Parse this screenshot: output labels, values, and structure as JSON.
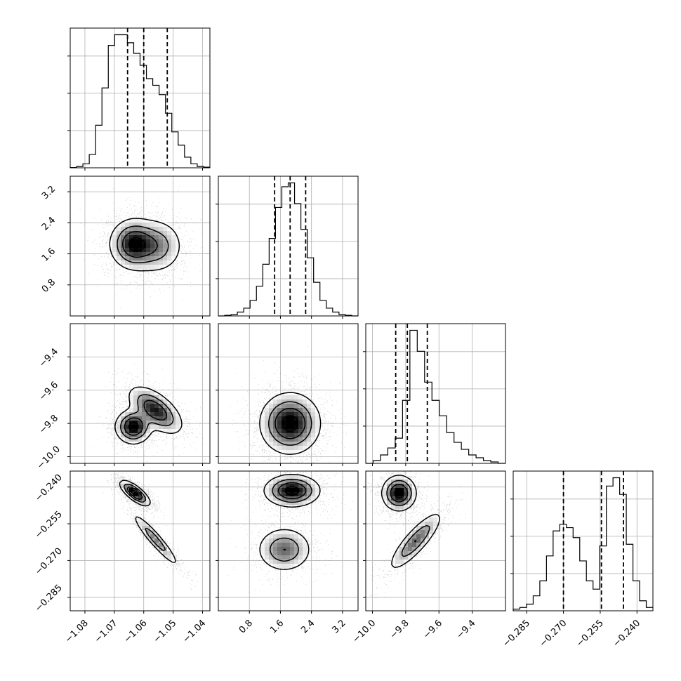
{
  "chart_data": {
    "type": "corner",
    "parameters": [
      {
        "ticks": [
          -1.08,
          -1.07,
          -1.06,
          -1.05,
          -1.04
        ],
        "tick_labels": [
          "−1.08",
          "−1.07",
          "−1.06",
          "−1.05",
          "−1.04"
        ],
        "range": [
          -1.085,
          -1.0375
        ],
        "quantiles": [
          -1.0655,
          -1.06,
          -1.052
        ],
        "hist_counts": [
          0.2,
          1,
          3,
          10,
          32,
          60,
          92,
          100,
          100,
          94,
          86,
          77,
          67,
          62,
          55,
          41,
          27,
          17,
          8,
          3,
          1,
          0.5
        ]
      },
      {
        "ticks": [
          0.8,
          1.6,
          2.4,
          3.2
        ],
        "tick_labels": [
          "0.8",
          "1.6",
          "2.4",
          "3.2"
        ],
        "range": [
          0.0,
          3.6
        ],
        "quantiles": [
          1.45,
          1.85,
          2.25
        ],
        "hist_counts": [
          0,
          0.5,
          1,
          3,
          6,
          12,
          23,
          40,
          60,
          84,
          100,
          103,
          87,
          67,
          45,
          26,
          12,
          6,
          3,
          1,
          0.5,
          0
        ]
      },
      {
        "ticks": [
          -10.0,
          -9.8,
          -9.6,
          -9.4
        ],
        "tick_labels": [
          "−10.0",
          "−9.8",
          "−9.6",
          "−9.4"
        ],
        "range": [
          -10.04,
          -9.2
        ],
        "quantiles": [
          -9.86,
          -9.79,
          -9.67
        ],
        "hist_counts": [
          0,
          2,
          6,
          11,
          18,
          45,
          95,
          80,
          58,
          45,
          34,
          22,
          15,
          10,
          6,
          4,
          2,
          1,
          0
        ]
      },
      {
        "ticks": [
          -0.285,
          -0.27,
          -0.255,
          -0.24
        ],
        "tick_labels": [
          "−0.285",
          "−0.270",
          "−0.255",
          "−0.240"
        ],
        "range": [
          -0.2905,
          -0.2335
        ],
        "quantiles": [
          -0.27,
          -0.2545,
          -0.2455
        ],
        "hist_counts": [
          1,
          2,
          4,
          9,
          18,
          33,
          48,
          52,
          50,
          44,
          30,
          18,
          13,
          39,
          75,
          80,
          70,
          40,
          18,
          6,
          2
        ]
      }
    ],
    "pairs": [
      {
        "x_param": 0,
        "y_param": 1,
        "modes": [
          {
            "cx": -1.0635,
            "cy": 1.85,
            "sx": 0.004,
            "sy": 0.32,
            "rho": 0.0,
            "w": 1.0
          },
          {
            "cx": -1.0555,
            "cy": 1.8,
            "sx": 0.0045,
            "sy": 0.35,
            "rho": 0.0,
            "w": 0.55
          }
        ]
      },
      {
        "x_param": 0,
        "y_param": 2,
        "modes": [
          {
            "cx": -1.0635,
            "cy": -9.82,
            "sx": 0.003,
            "sy": 0.05,
            "rho": 0.0,
            "w": 1.0
          },
          {
            "cx": -1.056,
            "cy": -9.72,
            "sx": 0.0045,
            "sy": 0.07,
            "rho": -0.6,
            "w": 0.85
          }
        ]
      },
      {
        "x_param": 0,
        "y_param": 3,
        "modes": [
          {
            "cx": -1.063,
            "cy": -0.2425,
            "sx": 0.0025,
            "sy": 0.0025,
            "rho": -0.75,
            "w": 1.0
          },
          {
            "cx": -1.056,
            "cy": -0.2615,
            "sx": 0.004,
            "sy": 0.0055,
            "rho": -0.94,
            "w": 0.5
          }
        ]
      },
      {
        "x_param": 1,
        "y_param": 2,
        "modes": [
          {
            "cx": 1.85,
            "cy": -9.8,
            "sx": 0.38,
            "sy": 0.09,
            "rho": 0.0,
            "w": 1.0
          }
        ]
      },
      {
        "x_param": 1,
        "y_param": 3,
        "modes": [
          {
            "cx": 1.9,
            "cy": -0.2415,
            "sx": 0.35,
            "sy": 0.0032,
            "rho": 0.0,
            "w": 1.0
          },
          {
            "cx": 1.7,
            "cy": -0.2655,
            "sx": 0.35,
            "sy": 0.0045,
            "rho": 0.0,
            "w": 0.6
          }
        ]
      },
      {
        "x_param": 2,
        "y_param": 3,
        "modes": [
          {
            "cx": -9.84,
            "cy": -0.2425,
            "sx": 0.05,
            "sy": 0.0035,
            "rho": 0.0,
            "w": 1.0
          },
          {
            "cx": -9.74,
            "cy": -0.262,
            "sx": 0.08,
            "sy": 0.006,
            "rho": 0.85,
            "w": 0.6
          }
        ]
      }
    ],
    "grid": true
  }
}
